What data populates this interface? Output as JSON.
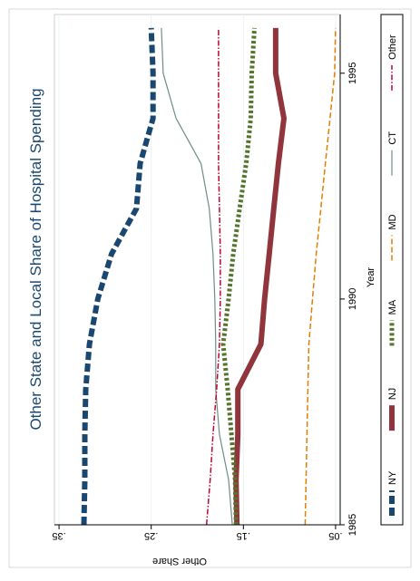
{
  "chart_data": {
    "type": "line",
    "orientation": "rotated-90-ccw",
    "title": "Other State and Local Share of Hospital Spending",
    "xlabel": "Year",
    "ylabel": "Other Share",
    "xlim": [
      1985,
      1996.3
    ],
    "ylim": [
      0.045,
      0.355
    ],
    "x_ticks": [
      1985,
      1990,
      1995
    ],
    "x_tick_labels": [
      "1985",
      "1990",
      "1995"
    ],
    "y_ticks": [
      0.35,
      0.25,
      0.15,
      0.05
    ],
    "y_tick_labels": [
      ".35",
      ".25",
      ".15",
      ".05"
    ],
    "grid": true,
    "legend_position": "right",
    "x": [
      1985,
      1986,
      1987,
      1988,
      1989,
      1990,
      1991,
      1992,
      1993,
      1994,
      1995,
      1996
    ],
    "series": [
      {
        "name": "NY",
        "color": "#1a476f",
        "dash": "dashed-heavy",
        "values": [
          0.323,
          0.322,
          0.322,
          0.321,
          0.317,
          0.308,
          0.293,
          0.266,
          0.262,
          0.248,
          0.248,
          0.25
        ]
      },
      {
        "name": "NJ",
        "color": "#90353b",
        "dash": "solid-heavy",
        "values": [
          0.157,
          0.158,
          0.156,
          0.156,
          0.131,
          0.127,
          0.122,
          0.117,
          0.112,
          0.106,
          0.115,
          0.115
        ]
      },
      {
        "name": "MA",
        "color": "#55752f",
        "dash": "dotted-heavy",
        "values": [
          0.158,
          0.159,
          0.163,
          0.167,
          0.172,
          0.166,
          0.161,
          0.154,
          0.147,
          0.142,
          0.141,
          0.138
        ]
      },
      {
        "name": "MD",
        "color": "#e37e00",
        "dash": "dashed",
        "values": [
          0.083,
          0.082,
          0.081,
          0.08,
          0.079,
          0.075,
          0.071,
          0.066,
          0.061,
          0.056,
          0.051,
          0.05
        ]
      },
      {
        "name": "CT",
        "color": "#6e8e84",
        "dash": "solid",
        "values": [
          0.162,
          0.166,
          0.176,
          0.18,
          0.18,
          0.181,
          0.183,
          0.187,
          0.196,
          0.223,
          0.237,
          0.239
        ]
      },
      {
        "name": "Other",
        "color": "#c10534",
        "dash": "dash-dot",
        "values": [
          0.19,
          0.186,
          0.183,
          0.179,
          0.176,
          0.175,
          0.175,
          0.176,
          0.177,
          0.177,
          0.177,
          0.177
        ]
      }
    ]
  }
}
